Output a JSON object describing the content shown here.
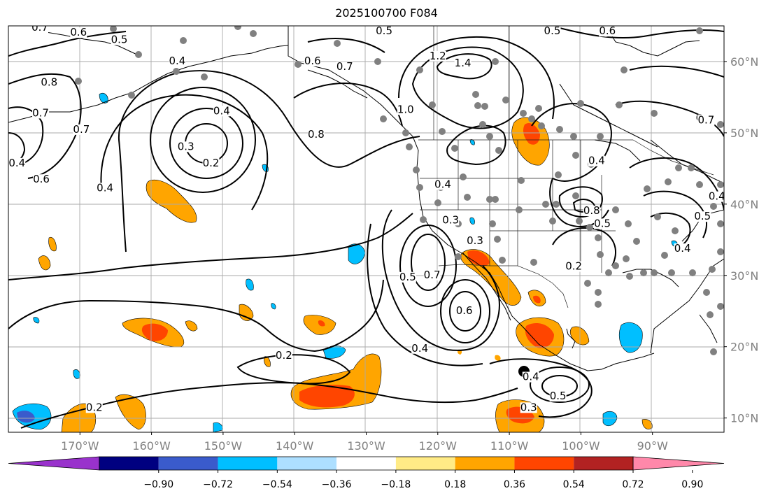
{
  "title": "2025100700 F084",
  "map": {
    "lon_range": [
      -180,
      -80
    ],
    "lat_range": [
      8,
      65
    ],
    "lon_ticks": [
      {
        "value": -170,
        "label": "170°W"
      },
      {
        "value": -160,
        "label": "160°W"
      },
      {
        "value": -150,
        "label": "150°W"
      },
      {
        "value": -140,
        "label": "140°W"
      },
      {
        "value": -130,
        "label": "130°W"
      },
      {
        "value": -120,
        "label": "120°W"
      },
      {
        "value": -110,
        "label": "110°W"
      },
      {
        "value": -100,
        "label": "100°W"
      },
      {
        "value": -90,
        "label": "90°W"
      }
    ],
    "lat_ticks": [
      {
        "value": 10,
        "label": "10°N"
      },
      {
        "value": 20,
        "label": "20°N"
      },
      {
        "value": 30,
        "label": "30°N"
      },
      {
        "value": 40,
        "label": "40°N"
      },
      {
        "value": 50,
        "label": "50°N"
      },
      {
        "value": 60,
        "label": "60°N"
      }
    ],
    "contour_labels": [
      {
        "text": "0.7",
        "lon": -175.6,
        "lat": 64.5
      },
      {
        "text": "0.6",
        "lon": -170.2,
        "lat": 63.8
      },
      {
        "text": "0.5",
        "lon": -164.5,
        "lat": 62.8
      },
      {
        "text": "0.4",
        "lon": -156.4,
        "lat": 59.8
      },
      {
        "text": "0.8",
        "lon": -174.3,
        "lat": 56.8
      },
      {
        "text": "0.7",
        "lon": -175.5,
        "lat": 52.5
      },
      {
        "text": "0.7",
        "lon": -169.8,
        "lat": 50.2
      },
      {
        "text": "0.4",
        "lon": -178.8,
        "lat": 45.5
      },
      {
        "text": "0.6",
        "lon": -175.4,
        "lat": 43.2
      },
      {
        "text": "0.4",
        "lon": -166.5,
        "lat": 42.0
      },
      {
        "text": "0.4",
        "lon": -150.2,
        "lat": 52.8
      },
      {
        "text": "0.3",
        "lon": -155.2,
        "lat": 47.8
      },
      {
        "text": "0.2",
        "lon": -151.7,
        "lat": 45.5
      },
      {
        "text": "0.6",
        "lon": -137.5,
        "lat": 59.8
      },
      {
        "text": "0.7",
        "lon": -133.0,
        "lat": 59.0
      },
      {
        "text": "0.5",
        "lon": -127.5,
        "lat": 64.0
      },
      {
        "text": "1.2",
        "lon": -120.0,
        "lat": 60.5
      },
      {
        "text": "1.4",
        "lon": -116.5,
        "lat": 59.5
      },
      {
        "text": "0.5",
        "lon": -104.0,
        "lat": 64.0
      },
      {
        "text": "0.6",
        "lon": -96.3,
        "lat": 64.0
      },
      {
        "text": "1.0",
        "lon": -124.5,
        "lat": 53.0
      },
      {
        "text": "0.8",
        "lon": -137.0,
        "lat": 49.5
      },
      {
        "text": "0.4",
        "lon": -119.3,
        "lat": 42.5
      },
      {
        "text": "0.3",
        "lon": -118.2,
        "lat": 37.5
      },
      {
        "text": "0.3",
        "lon": -114.8,
        "lat": 34.6
      },
      {
        "text": "0.5",
        "lon": -124.2,
        "lat": 29.5
      },
      {
        "text": "0.7",
        "lon": -120.8,
        "lat": 29.8
      },
      {
        "text": "0.6",
        "lon": -116.3,
        "lat": 24.8
      },
      {
        "text": "0.4",
        "lon": -122.5,
        "lat": 19.5
      },
      {
        "text": "0.2",
        "lon": -141.5,
        "lat": 18.5
      },
      {
        "text": "0.2",
        "lon": -168.0,
        "lat": 11.2
      },
      {
        "text": "0.4",
        "lon": -107.0,
        "lat": 15.5
      },
      {
        "text": "0.5",
        "lon": -103.2,
        "lat": 12.8
      },
      {
        "text": "0.3",
        "lon": -107.3,
        "lat": 11.2
      },
      {
        "text": "0.8",
        "lon": -98.5,
        "lat": 38.8
      },
      {
        "text": "0.5",
        "lon": -97.0,
        "lat": 37.0
      },
      {
        "text": "0.2",
        "lon": -101.0,
        "lat": 31.0
      },
      {
        "text": "0.7",
        "lon": -82.5,
        "lat": 51.5
      },
      {
        "text": "0.4",
        "lon": -85.8,
        "lat": 33.5
      },
      {
        "text": "0.5",
        "lon": -83.0,
        "lat": 38.0
      },
      {
        "text": "0.4",
        "lon": -81.0,
        "lat": 40.8
      },
      {
        "text": "0.4",
        "lon": -97.8,
        "lat": 45.8
      }
    ]
  },
  "colorbar": {
    "colors": [
      "#9932CC",
      "#000080",
      "#3A5BCC",
      "#00BFFF",
      "#ADDFFF",
      "#FFFFFF",
      "#FFEB86",
      "#FFA500",
      "#FF4500",
      "#B22222",
      "#FF88AA"
    ],
    "tick_labels": [
      "−0.90",
      "−0.72",
      "−0.54",
      "−0.36",
      "−0.18",
      "0.18",
      "0.36",
      "0.54",
      "0.72",
      "0.90"
    ]
  }
}
